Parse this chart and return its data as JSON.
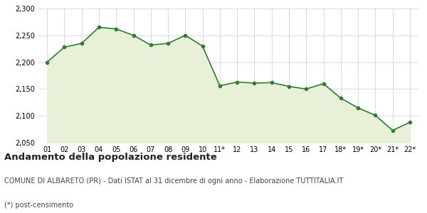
{
  "x_labels": [
    "01",
    "02",
    "03",
    "04",
    "05",
    "06",
    "07",
    "08",
    "09",
    "10",
    "11*",
    "12",
    "13",
    "14",
    "15",
    "16",
    "17",
    "18*",
    "19*",
    "20*",
    "21*",
    "22*"
  ],
  "y_values": [
    2200,
    2228,
    2235,
    2265,
    2262,
    2250,
    2232,
    2235,
    2250,
    2230,
    2156,
    2163,
    2161,
    2162,
    2155,
    2150,
    2160,
    2133,
    2115,
    2101,
    2073,
    2088
  ],
  "ylim": [
    2050,
    2300
  ],
  "yticks": [
    2050,
    2100,
    2150,
    2200,
    2250,
    2300
  ],
  "line_color": "#2e7d32",
  "fill_color": "#e8f0d8",
  "marker": "o",
  "marker_size": 3,
  "line_width": 1.2,
  "title": "Andamento della popolazione residente",
  "subtitle": "COMUNE DI ALBARETO (PR) - Dati ISTAT al 31 dicembre di ogni anno - Elaborazione TUTTITALIA.IT",
  "footnote": "(*) post-censimento",
  "bg_color": "#ffffff",
  "grid_color": "#cccccc",
  "title_fontsize": 9.5,
  "subtitle_fontsize": 7,
  "footnote_fontsize": 7,
  "tick_fontsize": 7
}
